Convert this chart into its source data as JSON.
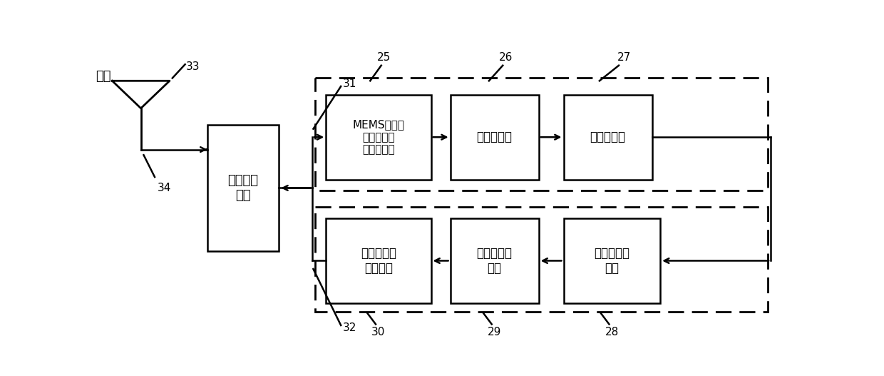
{
  "fig_width": 12.4,
  "fig_height": 5.27,
  "bg_color": "#ffffff",
  "antenna_label": "天线",
  "num_33": "33",
  "num_34": "34",
  "num_25": "25",
  "num_26": "26",
  "num_27": "27",
  "num_28": "28",
  "num_29": "29",
  "num_30": "30",
  "num_31": "31",
  "num_32": "32",
  "transceiver_label": "收发转换\n电路",
  "mems_label": "MEMS微波检\n测和解调单\n片集成系统",
  "signal_store_label": "信号存储器",
  "signal_analyzer_label": "信号分析器",
  "power_amp_label": "微波信号功\n率放大器",
  "modulator_label": "微波信号调\n制器",
  "reconstructor_label": "微波信号重\n构器",
  "line_color": "#000000"
}
